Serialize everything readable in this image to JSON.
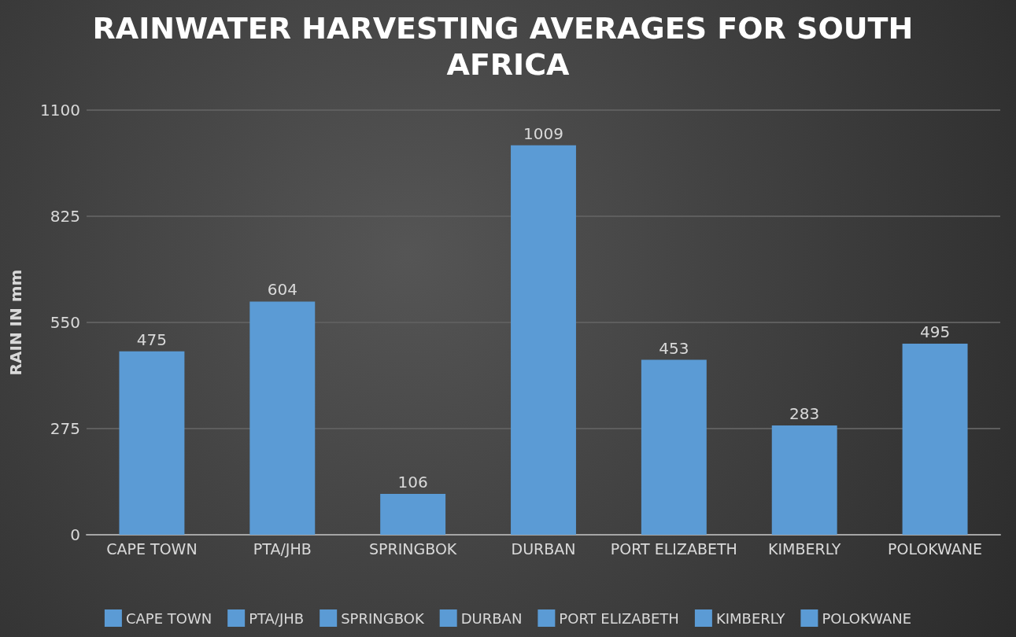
{
  "chart_data": {
    "type": "bar",
    "title": "RAINWATER HARVESTING AVERAGES FOR SOUTH AFRICA",
    "ylabel": "RAIN IN mm",
    "categories": [
      "CAPE TOWN",
      "PTA/JHB",
      "SPRINGBOK",
      "DURBAN",
      "PORT ELIZABETH",
      "KIMBERLY",
      "POLOKWANE"
    ],
    "series": [
      {
        "name": "CAPE TOWN",
        "color": "#5b9bd5",
        "values": [
          475,
          null,
          null,
          null,
          null,
          null,
          null
        ]
      },
      {
        "name": "PTA/JHB",
        "color": "#5b9bd5",
        "values": [
          null,
          604,
          null,
          null,
          null,
          null,
          null
        ]
      },
      {
        "name": "SPRINGBOK",
        "color": "#5b9bd5",
        "values": [
          null,
          null,
          106,
          null,
          null,
          null,
          null
        ]
      },
      {
        "name": "DURBAN",
        "color": "#5b9bd5",
        "values": [
          null,
          null,
          null,
          1009,
          null,
          null,
          null
        ]
      },
      {
        "name": "PORT ELIZABETH",
        "color": "#5b9bd5",
        "values": [
          null,
          null,
          null,
          null,
          453,
          null,
          null
        ]
      },
      {
        "name": "KIMBERLY",
        "color": "#5b9bd5",
        "values": [
          null,
          null,
          null,
          null,
          null,
          283,
          null
        ]
      },
      {
        "name": "POLOKWANE",
        "color": "#5b9bd5",
        "values": [
          null,
          null,
          null,
          null,
          null,
          null,
          495
        ]
      }
    ],
    "ylim": [
      0,
      1100
    ],
    "yticks": [
      0,
      275,
      550,
      825,
      1100
    ],
    "grid": "y",
    "legend": "bottom",
    "data_labels": true
  }
}
